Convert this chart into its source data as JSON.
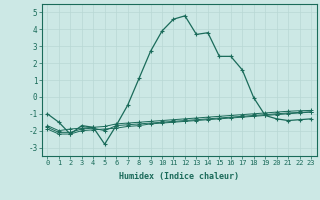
{
  "xlabel": "Humidex (Indice chaleur)",
  "x": [
    0,
    1,
    2,
    3,
    4,
    5,
    6,
    7,
    8,
    9,
    10,
    11,
    12,
    13,
    14,
    15,
    16,
    17,
    18,
    19,
    20,
    21,
    22,
    23
  ],
  "line1": [
    -1.0,
    -1.5,
    -2.2,
    -1.7,
    -1.8,
    -2.8,
    -1.7,
    -0.5,
    1.1,
    2.7,
    3.9,
    4.6,
    4.8,
    3.7,
    3.8,
    2.4,
    2.4,
    1.6,
    -0.05,
    -1.1,
    -1.3,
    -1.4,
    -1.35,
    -1.3
  ],
  "line2": [
    -1.9,
    -2.2,
    -2.2,
    -2.0,
    -1.95,
    -1.9,
    -1.85,
    -1.75,
    -1.7,
    -1.6,
    -1.55,
    -1.5,
    -1.45,
    -1.4,
    -1.35,
    -1.3,
    -1.25,
    -1.2,
    -1.15,
    -1.1,
    -1.05,
    -1.0,
    -0.95,
    -0.9
  ],
  "line3": [
    -1.8,
    -2.1,
    -2.1,
    -1.9,
    -1.85,
    -2.0,
    -1.7,
    -1.65,
    -1.6,
    -1.55,
    -1.5,
    -1.45,
    -1.4,
    -1.35,
    -1.3,
    -1.25,
    -1.2,
    -1.15,
    -1.1,
    -1.05,
    -1.0,
    -0.95,
    -0.92,
    -0.88
  ],
  "line4": [
    -1.7,
    -2.0,
    -1.9,
    -1.85,
    -1.8,
    -1.75,
    -1.6,
    -1.55,
    -1.5,
    -1.45,
    -1.4,
    -1.35,
    -1.3,
    -1.25,
    -1.2,
    -1.15,
    -1.1,
    -1.05,
    -1.0,
    -0.95,
    -0.9,
    -0.85,
    -0.82,
    -0.8
  ],
  "line_color": "#1a6b5a",
  "bg_color": "#cce8e5",
  "grid_color": "#b8d8d4",
  "ylim": [
    -3.5,
    5.5
  ],
  "yticks": [
    -3,
    -2,
    -1,
    0,
    1,
    2,
    3,
    4,
    5
  ],
  "xlim": [
    -0.5,
    23.5
  ]
}
